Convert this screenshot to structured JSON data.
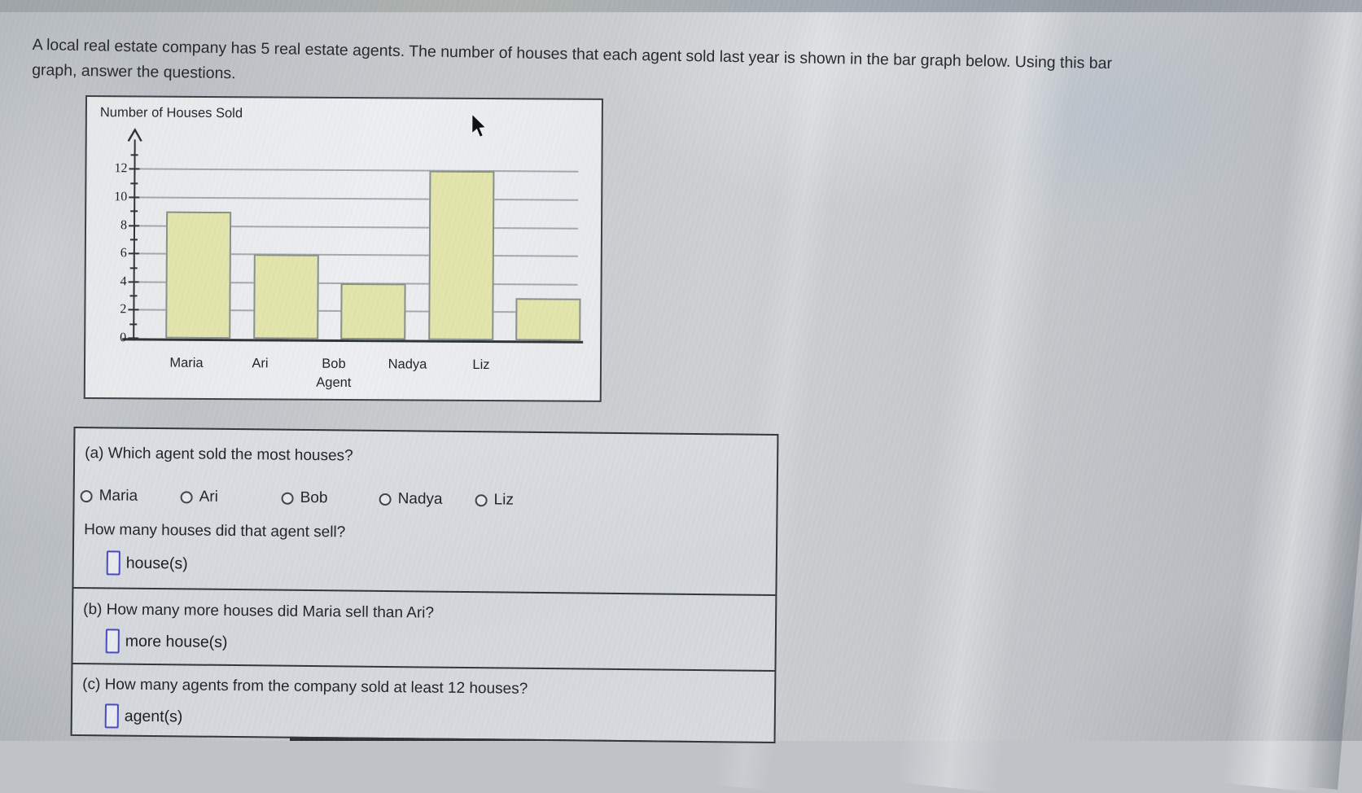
{
  "intro": {
    "line1": "A local real estate company has 5 real estate agents. The number of houses that each agent sold last year is shown in the bar graph below. Using this bar",
    "line2": "graph, answer the questions."
  },
  "chart_data": {
    "type": "bar",
    "title": "Number of Houses Sold",
    "xlabel": "Agent",
    "categories": [
      "Maria",
      "Ari",
      "Bob",
      "Nadya",
      "Liz"
    ],
    "values": [
      9,
      6,
      4,
      12,
      3
    ],
    "ylim": [
      0,
      12
    ],
    "ytick_step": 2,
    "ytick_labels": [
      "0",
      "2",
      "4",
      "6",
      "8",
      "10",
      "12"
    ],
    "minor_ticks": [
      1,
      3,
      5,
      7,
      9,
      11,
      13
    ],
    "grid": "horizontal-even-values",
    "legend": "none",
    "bar_fill": "#e2e5aa",
    "bar_border": "#878f8e"
  },
  "questions": {
    "a": {
      "text": "(a) Which agent sold the most houses?",
      "options": [
        "Maria",
        "Ari",
        "Bob",
        "Nadya",
        "Liz"
      ],
      "followup": "How many houses did that agent sell?",
      "answer_unit": "house(s)",
      "answer_value": ""
    },
    "b": {
      "text": "(b) How many more houses did Maria sell than Ari?",
      "answer_unit": "more house(s)",
      "answer_value": ""
    },
    "c": {
      "text": "(c) How many agents from the company sold at least 12 houses?",
      "answer_unit": "agent(s)",
      "answer_value": ""
    }
  },
  "cursor": "arrow-pointer-icon",
  "colors": {
    "input_border": "#4946c4",
    "box_border": "#2f353a",
    "grid_line": "#8a9298",
    "bar_fill": "#e2e5aa",
    "bar_border": "#878f8e"
  }
}
